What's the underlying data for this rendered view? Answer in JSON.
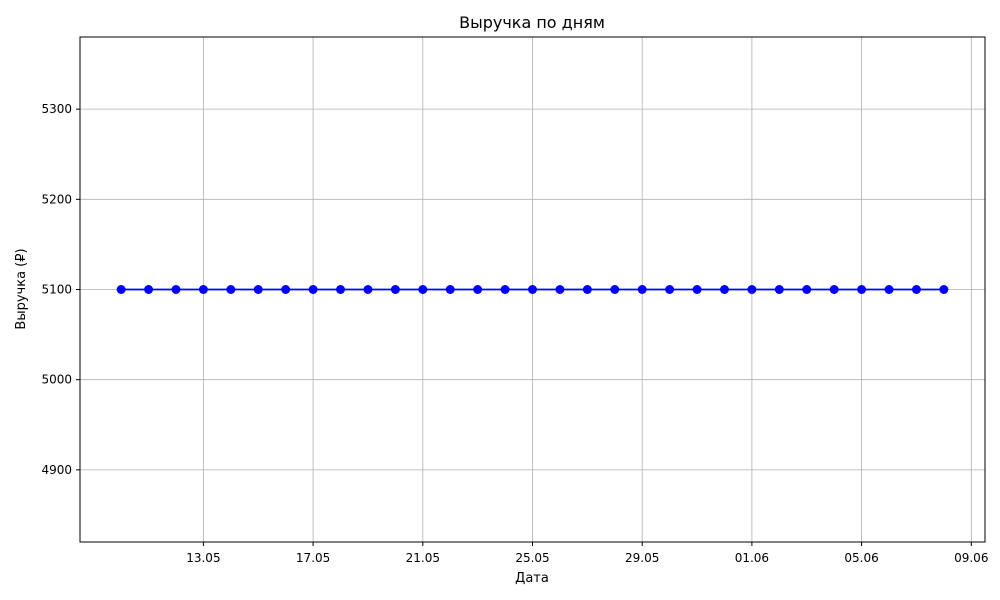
{
  "chart_data": {
    "type": "line",
    "title": "Выручка по дням",
    "xlabel": "Дата",
    "ylabel": "Выручка (₽)",
    "x_tick_labels": [
      "13.05",
      "17.05",
      "21.05",
      "25.05",
      "29.05",
      "01.06",
      "05.06",
      "09.06"
    ],
    "y_tick_labels": [
      "4900",
      "5000",
      "5100",
      "5200",
      "5300"
    ],
    "ylim": [
      4820,
      5380
    ],
    "grid": true,
    "line_color": "#0000ff",
    "x": [
      "2025-05-10",
      "2025-05-11",
      "2025-05-12",
      "2025-05-13",
      "2025-05-14",
      "2025-05-15",
      "2025-05-16",
      "2025-05-17",
      "2025-05-18",
      "2025-05-19",
      "2025-05-20",
      "2025-05-21",
      "2025-05-22",
      "2025-05-23",
      "2025-05-24",
      "2025-05-25",
      "2025-05-26",
      "2025-05-27",
      "2025-05-28",
      "2025-05-29",
      "2025-05-30",
      "2025-05-31",
      "2025-06-01",
      "2025-06-02",
      "2025-06-03",
      "2025-06-04",
      "2025-06-05",
      "2025-06-06",
      "2025-06-07",
      "2025-06-08",
      "2025-06-09"
    ],
    "values": [
      5100,
      5100,
      5100,
      5100,
      5100,
      5100,
      5100,
      5100,
      5100,
      5100,
      5100,
      5100,
      5100,
      5100,
      5100,
      5100,
      5100,
      5100,
      5100,
      5100,
      5100,
      5100,
      5100,
      5100,
      5100,
      5100,
      5100,
      5100,
      5100,
      5100,
      5100
    ]
  }
}
